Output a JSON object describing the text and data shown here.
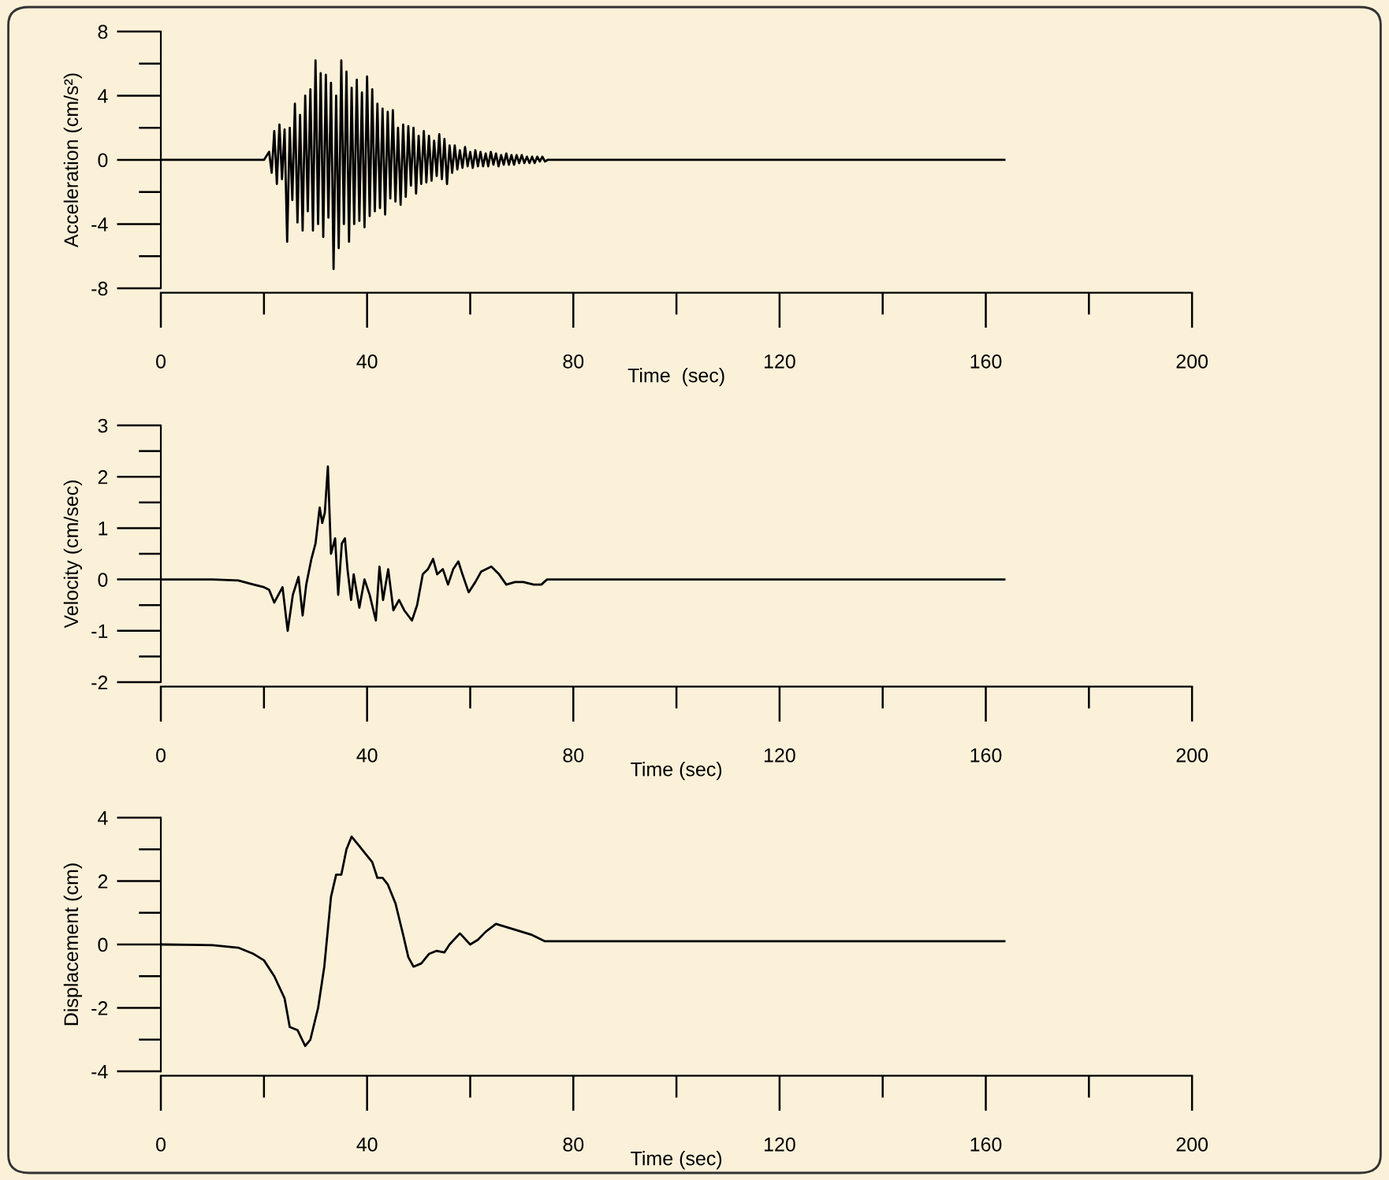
{
  "chart_data": [
    {
      "type": "line",
      "xlabel": "Time  (sec)",
      "ylabel": "Acceleration (cm/s²)",
      "xlim": [
        0,
        200
      ],
      "ylim": [
        -8,
        8
      ],
      "xticks": [
        0,
        {
          "value": 20,
          "label": null
        },
        40,
        {
          "value": 60,
          "label": null
        },
        80,
        {
          "value": 100,
          "label": null
        },
        120,
        {
          "value": 140,
          "label": null
        },
        160,
        {
          "value": 180,
          "label": null
        },
        200
      ],
      "yticks": [
        -8,
        {
          "value": -6,
          "label": null
        },
        -4,
        {
          "value": -2,
          "label": null
        },
        0,
        {
          "value": 2,
          "label": null
        },
        4,
        {
          "value": 6,
          "label": null
        },
        8
      ],
      "grid": false,
      "series": [
        {
          "color": "#000000",
          "x": [
            0,
            20,
            21,
            21.5,
            22,
            22.5,
            23,
            23.5,
            24,
            24.5,
            25,
            25.5,
            26,
            26.5,
            27,
            27.5,
            28,
            28.5,
            29,
            29.5,
            30,
            30.5,
            31,
            31.5,
            32,
            32.5,
            33,
            33.5,
            34,
            34.5,
            35,
            35.5,
            36,
            36.5,
            37,
            37.5,
            38,
            38.5,
            39,
            39.5,
            40,
            40.5,
            41,
            41.5,
            42,
            42.5,
            43,
            43.5,
            44,
            44.5,
            45,
            45.5,
            46,
            46.5,
            47,
            47.5,
            48,
            48.5,
            49,
            49.5,
            50,
            50.5,
            51,
            51.5,
            52,
            52.5,
            53,
            53.5,
            54,
            54.5,
            55,
            55.5,
            56,
            56.5,
            57,
            57.5,
            58,
            58.5,
            59,
            59.5,
            60,
            60.5,
            61,
            61.5,
            62,
            62.5,
            63,
            63.5,
            64,
            64.5,
            65,
            65.5,
            66,
            66.5,
            67,
            67.5,
            68,
            68.5,
            69,
            69.5,
            70,
            70.5,
            71,
            71.5,
            72,
            72.5,
            73,
            73.5,
            74,
            74.5,
            75,
            163.6
          ],
          "values": [
            0,
            0,
            0.5,
            -0.8,
            1.8,
            -1.5,
            2.2,
            -1.2,
            1.9,
            -5.1,
            2.0,
            -2.5,
            3.5,
            -3.9,
            2.8,
            -4.4,
            4.0,
            -3.2,
            4.4,
            -4.4,
            6.2,
            -4.0,
            5.4,
            -4.8,
            5.3,
            -3.6,
            4.8,
            -6.8,
            4.0,
            -5.5,
            6.2,
            -4.0,
            5.5,
            -5.1,
            4.5,
            -4.0,
            5.0,
            -3.8,
            4.2,
            -4.2,
            5.2,
            -3.5,
            4.4,
            -3.2,
            3.5,
            -3.0,
            3.2,
            -3.4,
            3.0,
            -2.4,
            3.1,
            -2.6,
            2.0,
            -2.8,
            2.2,
            -2.3,
            2.1,
            -1.6,
            2.0,
            -2.1,
            1.5,
            -1.5,
            1.8,
            -1.4,
            1.5,
            -1.3,
            1.2,
            -1.0,
            1.6,
            -1.2,
            1.3,
            -1.5,
            0.9,
            -0.8,
            0.9,
            -0.6,
            0.6,
            -0.5,
            0.8,
            -0.4,
            0.5,
            -0.5,
            0.6,
            -0.4,
            0.5,
            -0.4,
            0.4,
            -0.4,
            0.5,
            -0.3,
            0.4,
            -0.4,
            0.3,
            -0.3,
            0.4,
            -0.3,
            0.3,
            -0.3,
            0.3,
            -0.2,
            0.3,
            -0.2,
            0.2,
            -0.2,
            0.2,
            -0.2,
            0.2,
            -0.1,
            0.2,
            -0.1,
            0,
            0
          ]
        }
      ]
    },
    {
      "type": "line",
      "xlabel": "Time (sec)",
      "ylabel": "Velocity (cm/sec)",
      "xlim": [
        0,
        200
      ],
      "ylim": [
        -2,
        3
      ],
      "xticks": [
        0,
        {
          "value": 20,
          "label": null
        },
        40,
        {
          "value": 60,
          "label": null
        },
        80,
        {
          "value": 100,
          "label": null
        },
        120,
        {
          "value": 140,
          "label": null
        },
        160,
        {
          "value": 180,
          "label": null
        },
        200
      ],
      "yticks": [
        -2,
        {
          "value": -1.5,
          "label": null
        },
        -1,
        {
          "value": -0.5,
          "label": null
        },
        0,
        {
          "value": 0.5,
          "label": null
        },
        1,
        {
          "value": 1.5,
          "label": null
        },
        2,
        {
          "value": 2.5,
          "label": null
        },
        3
      ],
      "grid": false,
      "series": [
        {
          "color": "#000000",
          "x": [
            0,
            10,
            15,
            18,
            20,
            21,
            22,
            23.6,
            24.6,
            25.6,
            26.7,
            27.5,
            28.2,
            29.2,
            30,
            30.8,
            31.3,
            31.8,
            32.4,
            33,
            33.8,
            34.4,
            35.1,
            35.7,
            36.2,
            36.9,
            37.4,
            38.5,
            39.5,
            40.5,
            41.7,
            42.4,
            43.1,
            44.1,
            45.1,
            46.2,
            47.2,
            48.7,
            49.7,
            50.8,
            51.8,
            52.8,
            53.6,
            54.7,
            55.7,
            56.7,
            57.7,
            58.5,
            59.7,
            61,
            62.1,
            64.1,
            65.6,
            67,
            68.7,
            70.3,
            72.3,
            73.8,
            74.9,
            163.6
          ],
          "values": [
            0,
            0,
            -0.02,
            -0.1,
            -0.15,
            -0.2,
            -0.45,
            -0.15,
            -1.0,
            -0.3,
            0.05,
            -0.7,
            -0.1,
            0.4,
            0.7,
            1.4,
            1.1,
            1.3,
            2.2,
            0.5,
            0.8,
            -0.3,
            0.7,
            0.8,
            0.2,
            -0.4,
            0.1,
            -0.55,
            0.0,
            -0.3,
            -0.8,
            0.25,
            -0.4,
            0.2,
            -0.6,
            -0.4,
            -0.6,
            -0.8,
            -0.5,
            0.1,
            0.2,
            0.4,
            0.1,
            0.2,
            -0.1,
            0.2,
            0.35,
            0.1,
            -0.25,
            -0.05,
            0.15,
            0.25,
            0.1,
            -0.1,
            -0.05,
            -0.05,
            -0.1,
            -0.1,
            0.0,
            0.0
          ]
        }
      ]
    },
    {
      "type": "line",
      "xlabel": "Time (sec)",
      "ylabel": "Displacement (cm)",
      "xlim": [
        0,
        200
      ],
      "ylim": [
        -4,
        4
      ],
      "xticks": [
        0,
        {
          "value": 20,
          "label": null
        },
        40,
        {
          "value": 60,
          "label": null
        },
        80,
        {
          "value": 100,
          "label": null
        },
        120,
        {
          "value": 140,
          "label": null
        },
        160,
        {
          "value": 180,
          "label": null
        },
        200
      ],
      "yticks": [
        -4,
        {
          "value": -3,
          "label": null
        },
        -2,
        {
          "value": -1,
          "label": null
        },
        0,
        {
          "value": 1,
          "label": null
        },
        2,
        {
          "value": 3,
          "label": null
        },
        4
      ],
      "grid": false,
      "series": [
        {
          "color": "#000000",
          "x": [
            0,
            10,
            15,
            18,
            20,
            22,
            24,
            25,
            26.5,
            28,
            29,
            30.5,
            31.7,
            33,
            34,
            35,
            36,
            37,
            38.5,
            40,
            41,
            42,
            43,
            44,
            45.5,
            47,
            48,
            49,
            50.5,
            52,
            53.5,
            55,
            56,
            58,
            60,
            61.5,
            63,
            65,
            67,
            70,
            72,
            74.5,
            163.6
          ],
          "values": [
            0,
            -0.02,
            -0.1,
            -0.3,
            -0.5,
            -1.0,
            -1.7,
            -2.6,
            -2.7,
            -3.2,
            -3.0,
            -2.0,
            -0.7,
            1.5,
            2.2,
            2.2,
            3.0,
            3.4,
            3.1,
            2.8,
            2.6,
            2.1,
            2.1,
            1.9,
            1.3,
            0.3,
            -0.4,
            -0.7,
            -0.6,
            -0.3,
            -0.2,
            -0.25,
            0.0,
            0.35,
            0.0,
            0.15,
            0.4,
            0.65,
            0.55,
            0.4,
            0.3,
            0.1,
            0.1
          ]
        }
      ]
    }
  ]
}
